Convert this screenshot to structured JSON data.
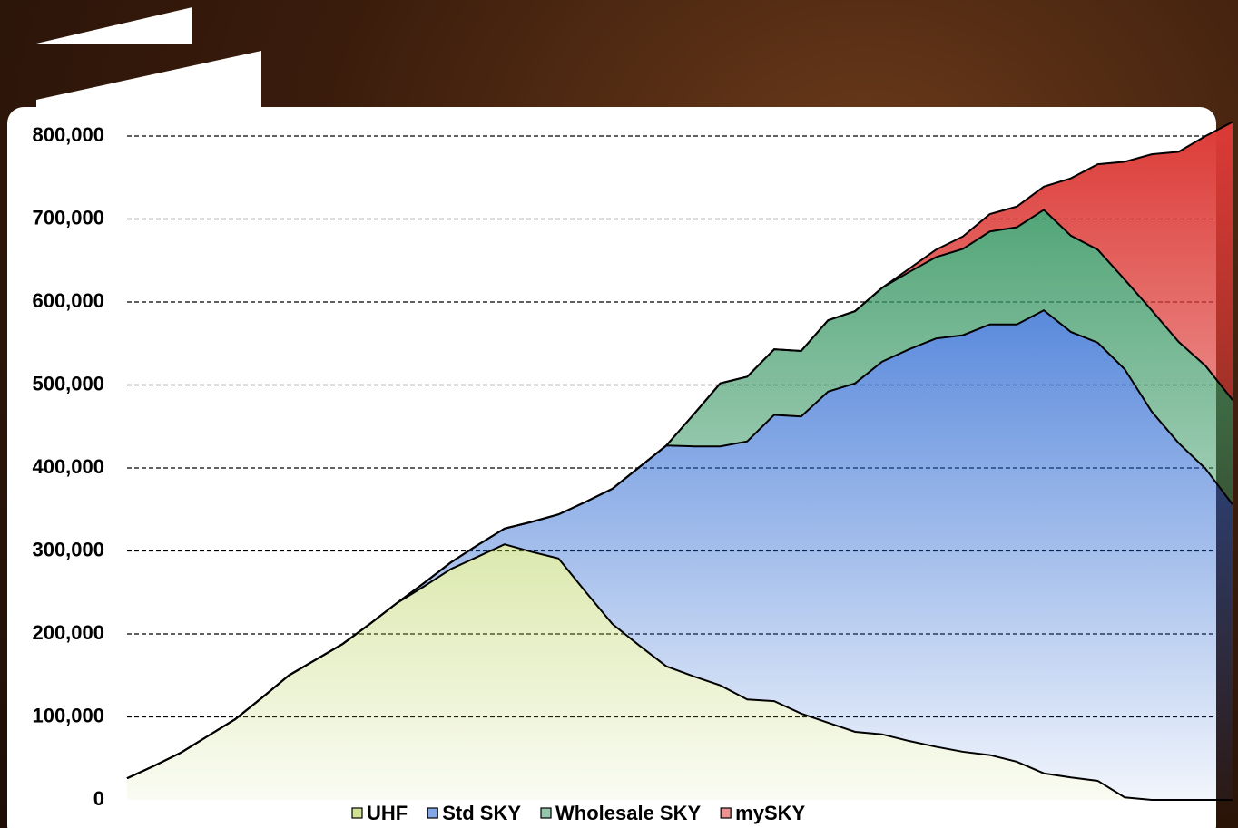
{
  "chart_data": {
    "type": "stacked-area",
    "categories": [
      null,
      null,
      null,
      null,
      null,
      null,
      null,
      null,
      null,
      null,
      null,
      null,
      null,
      null,
      null,
      null,
      null,
      null,
      null,
      null,
      null,
      null,
      null,
      null,
      null,
      null,
      null,
      null,
      null,
      null,
      null,
      null,
      null,
      null,
      null,
      null,
      null,
      null,
      null,
      null,
      null,
      null
    ],
    "series": [
      {
        "name": "UHF",
        "color": "#a9c83a",
        "values": [
          26000,
          41000,
          57000,
          77000,
          97000,
          123000,
          150000,
          169000,
          188000,
          212000,
          237000,
          257000,
          278000,
          293000,
          308000,
          299000,
          291000,
          251000,
          212000,
          186000,
          161000,
          149000,
          138000,
          121000,
          119000,
          104000,
          93000,
          82000,
          79000,
          71000,
          64000,
          58000,
          54000,
          46000,
          32000,
          27000,
          23000,
          3000,
          0,
          0,
          0,
          0
        ]
      },
      {
        "name": "Std SKY",
        "color": "#1e5fcf",
        "values": [
          0,
          0,
          0,
          0,
          0,
          0,
          0,
          0,
          0,
          0,
          0,
          4000,
          8000,
          14000,
          19000,
          36000,
          53000,
          108000,
          163000,
          215000,
          266000,
          277000,
          288000,
          311000,
          345000,
          358000,
          399000,
          420000,
          449000,
          472000,
          492000,
          502000,
          519000,
          527000,
          558000,
          537000,
          528000,
          516000,
          468000,
          430000,
          399000,
          356000
        ]
      },
      {
        "name": "Wholesale SKY",
        "color": "#3a9865",
        "values": [
          0,
          0,
          0,
          0,
          0,
          0,
          0,
          0,
          0,
          0,
          0,
          0,
          0,
          0,
          0,
          0,
          0,
          0,
          0,
          0,
          0,
          38000,
          76000,
          78000,
          79000,
          79000,
          86000,
          87000,
          89000,
          93000,
          98000,
          104000,
          112000,
          117000,
          121000,
          116000,
          112000,
          108000,
          122000,
          122000,
          124000,
          126000
        ]
      },
      {
        "name": "mySKY",
        "color": "#dc3a36",
        "values": [
          0,
          0,
          0,
          0,
          0,
          0,
          0,
          0,
          0,
          0,
          0,
          0,
          0,
          0,
          0,
          0,
          0,
          0,
          0,
          0,
          0,
          0,
          0,
          0,
          0,
          0,
          0,
          0,
          0,
          4000,
          9000,
          15000,
          21000,
          25000,
          28000,
          69000,
          103000,
          142000,
          188000,
          229000,
          277000,
          335000
        ]
      }
    ],
    "ylim": [
      0,
      820000
    ],
    "yticks": [
      0,
      {
        "value": 100000,
        "label": "100,000"
      },
      {
        "value": 200000,
        "label": "200,000"
      },
      {
        "value": 300000,
        "label": "300,000"
      },
      {
        "value": 400000,
        "label": "400,000"
      },
      {
        "value": 500000,
        "label": "500,000"
      },
      {
        "value": 600000,
        "label": "600,000"
      },
      {
        "value": 700000,
        "label": "700,000"
      },
      {
        "value": 800000,
        "label": "800,000"
      }
    ],
    "grid": true,
    "legend": "bottom"
  }
}
